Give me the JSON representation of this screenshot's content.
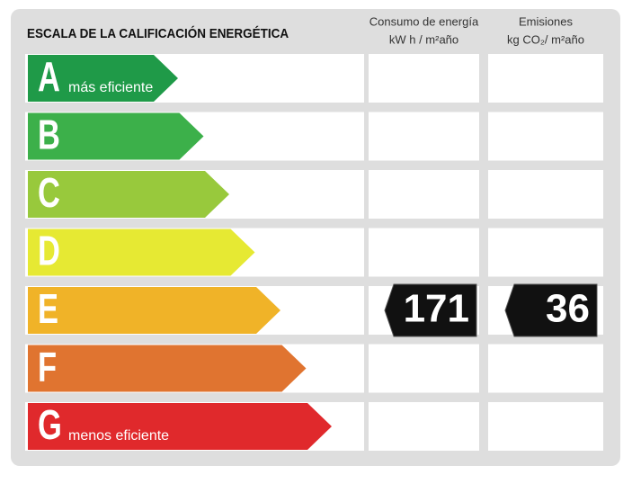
{
  "title": "ESCALA DE LA CALIFICACIÓN ENERGÉTICA",
  "columns": [
    {
      "name": "Consumo de energía",
      "unit": "kW h / m²año"
    },
    {
      "name": "Emisiones",
      "unit": "kg CO₂/ m²año"
    }
  ],
  "classes": [
    {
      "letter": "A",
      "note": "más eficiente",
      "color": "#1f9a48"
    },
    {
      "letter": "B",
      "color": "#3cb04a"
    },
    {
      "letter": "C",
      "color": "#98c93c"
    },
    {
      "letter": "D",
      "color": "#e6e933"
    },
    {
      "letter": "E",
      "color": "#f0b328"
    },
    {
      "letter": "F",
      "color": "#e07430"
    },
    {
      "letter": "G",
      "note": "menos eficiente",
      "color": "#e0292c"
    }
  ],
  "rating": {
    "class": "E",
    "values": [
      171,
      36
    ]
  }
}
